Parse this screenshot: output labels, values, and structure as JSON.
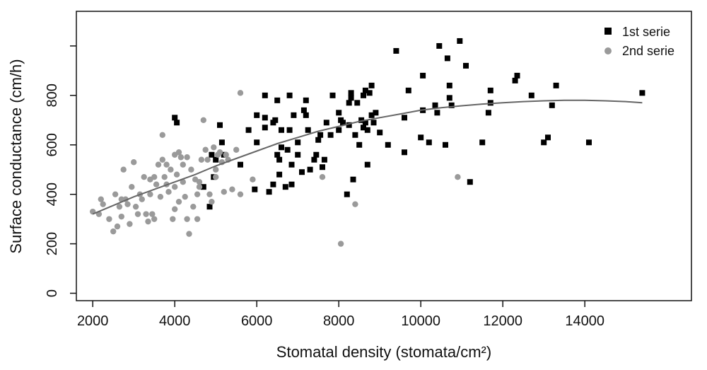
{
  "chart_data": {
    "type": "scatter",
    "title": "",
    "xlabel": "Stomatal density (stomata/cm²)",
    "ylabel": "Surface conductance (cm/h)",
    "xlim": [
      1600,
      16600
    ],
    "ylim": [
      -30,
      1140
    ],
    "x_ticks": [
      2000,
      4000,
      6000,
      8000,
      10000,
      12000,
      14000
    ],
    "x_tick_labels": [
      "2000",
      "4000",
      "6000",
      "8000",
      "10000",
      "12000",
      "14000"
    ],
    "y_ticks": [
      0,
      200,
      400,
      600,
      800,
      1000
    ],
    "y_tick_labels": [
      "0",
      "200",
      "400",
      "600",
      "800",
      ""
    ],
    "grid": false,
    "legend_position": "top-right",
    "series": [
      {
        "name": "1st serie",
        "marker": "square",
        "color": "#000000",
        "points": [
          [
            4000,
            710
          ],
          [
            4050,
            690
          ],
          [
            4700,
            430
          ],
          [
            4850,
            350
          ],
          [
            4900,
            560
          ],
          [
            4950,
            470
          ],
          [
            5000,
            540
          ],
          [
            5100,
            680
          ],
          [
            5150,
            610
          ],
          [
            5200,
            560
          ],
          [
            5600,
            520
          ],
          [
            5800,
            660
          ],
          [
            5950,
            420
          ],
          [
            6000,
            720
          ],
          [
            6000,
            610
          ],
          [
            6200,
            710
          ],
          [
            6200,
            800
          ],
          [
            6200,
            670
          ],
          [
            6300,
            410
          ],
          [
            6400,
            690
          ],
          [
            6400,
            440
          ],
          [
            6450,
            700
          ],
          [
            6500,
            560
          ],
          [
            6500,
            780
          ],
          [
            6550,
            540
          ],
          [
            6550,
            480
          ],
          [
            6600,
            660
          ],
          [
            6600,
            590
          ],
          [
            6700,
            430
          ],
          [
            6750,
            580
          ],
          [
            6800,
            660
          ],
          [
            6800,
            800
          ],
          [
            6850,
            520
          ],
          [
            6850,
            440
          ],
          [
            6900,
            720
          ],
          [
            7000,
            610
          ],
          [
            7000,
            560
          ],
          [
            7100,
            490
          ],
          [
            7150,
            740
          ],
          [
            7200,
            780
          ],
          [
            7200,
            720
          ],
          [
            7250,
            660
          ],
          [
            7300,
            500
          ],
          [
            7400,
            540
          ],
          [
            7450,
            560
          ],
          [
            7500,
            620
          ],
          [
            7550,
            640
          ],
          [
            7600,
            510
          ],
          [
            7650,
            540
          ],
          [
            7700,
            690
          ],
          [
            7800,
            640
          ],
          [
            7850,
            800
          ],
          [
            8000,
            660
          ],
          [
            8000,
            730
          ],
          [
            8050,
            700
          ],
          [
            8100,
            690
          ],
          [
            8200,
            400
          ],
          [
            8250,
            770
          ],
          [
            8250,
            680
          ],
          [
            8300,
            810
          ],
          [
            8300,
            790
          ],
          [
            8350,
            460
          ],
          [
            8400,
            640
          ],
          [
            8450,
            770
          ],
          [
            8500,
            600
          ],
          [
            8550,
            700
          ],
          [
            8600,
            800
          ],
          [
            8600,
            670
          ],
          [
            8650,
            820
          ],
          [
            8650,
            690
          ],
          [
            8700,
            660
          ],
          [
            8700,
            520
          ],
          [
            8750,
            810
          ],
          [
            8800,
            840
          ],
          [
            8800,
            720
          ],
          [
            8850,
            690
          ],
          [
            8900,
            730
          ],
          [
            9000,
            650
          ],
          [
            9200,
            600
          ],
          [
            9400,
            980
          ],
          [
            9600,
            710
          ],
          [
            9600,
            570
          ],
          [
            9700,
            820
          ],
          [
            10000,
            630
          ],
          [
            10050,
            880
          ],
          [
            10050,
            740
          ],
          [
            10200,
            610
          ],
          [
            10350,
            760
          ],
          [
            10400,
            730
          ],
          [
            10450,
            1000
          ],
          [
            10600,
            600
          ],
          [
            10650,
            950
          ],
          [
            10700,
            840
          ],
          [
            10700,
            790
          ],
          [
            10750,
            760
          ],
          [
            10950,
            1020
          ],
          [
            11100,
            920
          ],
          [
            11200,
            450
          ],
          [
            11500,
            610
          ],
          [
            11650,
            730
          ],
          [
            11700,
            770
          ],
          [
            11700,
            820
          ],
          [
            12300,
            860
          ],
          [
            12350,
            880
          ],
          [
            12700,
            800
          ],
          [
            13000,
            610
          ],
          [
            13100,
            630
          ],
          [
            13200,
            760
          ],
          [
            13300,
            840
          ],
          [
            14100,
            610
          ],
          [
            15400,
            810
          ]
        ]
      },
      {
        "name": "2nd serie",
        "marker": "circle",
        "color": "#9a9a9a",
        "points": [
          [
            2000,
            330
          ],
          [
            2150,
            320
          ],
          [
            2200,
            380
          ],
          [
            2250,
            360
          ],
          [
            2400,
            300
          ],
          [
            2500,
            250
          ],
          [
            2550,
            400
          ],
          [
            2600,
            270
          ],
          [
            2650,
            350
          ],
          [
            2700,
            380
          ],
          [
            2700,
            310
          ],
          [
            2750,
            500
          ],
          [
            2800,
            380
          ],
          [
            2850,
            360
          ],
          [
            2900,
            280
          ],
          [
            2950,
            430
          ],
          [
            3000,
            530
          ],
          [
            3050,
            350
          ],
          [
            3100,
            320
          ],
          [
            3150,
            400
          ],
          [
            3200,
            380
          ],
          [
            3250,
            470
          ],
          [
            3300,
            320
          ],
          [
            3350,
            290
          ],
          [
            3400,
            460
          ],
          [
            3400,
            400
          ],
          [
            3450,
            320
          ],
          [
            3500,
            300
          ],
          [
            3500,
            470
          ],
          [
            3550,
            440
          ],
          [
            3600,
            520
          ],
          [
            3650,
            390
          ],
          [
            3700,
            640
          ],
          [
            3700,
            540
          ],
          [
            3750,
            470
          ],
          [
            3800,
            520
          ],
          [
            3800,
            440
          ],
          [
            3850,
            410
          ],
          [
            3900,
            500
          ],
          [
            3950,
            300
          ],
          [
            4000,
            560
          ],
          [
            4000,
            430
          ],
          [
            4000,
            340
          ],
          [
            4050,
            480
          ],
          [
            4100,
            370
          ],
          [
            4100,
            570
          ],
          [
            4150,
            550
          ],
          [
            4200,
            450
          ],
          [
            4200,
            520
          ],
          [
            4250,
            390
          ],
          [
            4300,
            300
          ],
          [
            4300,
            550
          ],
          [
            4350,
            240
          ],
          [
            4400,
            500
          ],
          [
            4450,
            350
          ],
          [
            4500,
            460
          ],
          [
            4550,
            300
          ],
          [
            4550,
            400
          ],
          [
            4600,
            450
          ],
          [
            4600,
            430
          ],
          [
            4650,
            540
          ],
          [
            4700,
            700
          ],
          [
            4750,
            580
          ],
          [
            4800,
            540
          ],
          [
            4850,
            400
          ],
          [
            4900,
            370
          ],
          [
            4950,
            590
          ],
          [
            5000,
            500
          ],
          [
            5000,
            470
          ],
          [
            5050,
            560
          ],
          [
            5100,
            570
          ],
          [
            5150,
            530
          ],
          [
            5200,
            410
          ],
          [
            5250,
            560
          ],
          [
            5300,
            540
          ],
          [
            5400,
            420
          ],
          [
            5500,
            580
          ],
          [
            5600,
            810
          ],
          [
            5600,
            400
          ],
          [
            5900,
            460
          ],
          [
            7600,
            470
          ],
          [
            8050,
            200
          ],
          [
            8400,
            360
          ],
          [
            10900,
            470
          ]
        ]
      }
    ],
    "trend_line": {
      "color": "#666666",
      "points": [
        [
          2000,
          320
        ],
        [
          2500,
          355
        ],
        [
          3000,
          390
        ],
        [
          3500,
          420
        ],
        [
          4000,
          450
        ],
        [
          4500,
          480
        ],
        [
          5000,
          515
        ],
        [
          5500,
          545
        ],
        [
          6000,
          575
        ],
        [
          6500,
          605
        ],
        [
          7000,
          630
        ],
        [
          7500,
          655
        ],
        [
          8000,
          675
        ],
        [
          8500,
          695
        ],
        [
          9000,
          710
        ],
        [
          9500,
          725
        ],
        [
          10000,
          740
        ],
        [
          10500,
          750
        ],
        [
          11000,
          758
        ],
        [
          11500,
          765
        ],
        [
          12000,
          770
        ],
        [
          12500,
          775
        ],
        [
          13000,
          778
        ],
        [
          13500,
          780
        ],
        [
          14000,
          780
        ],
        [
          14500,
          778
        ],
        [
          15000,
          775
        ],
        [
          15400,
          770
        ]
      ]
    }
  }
}
